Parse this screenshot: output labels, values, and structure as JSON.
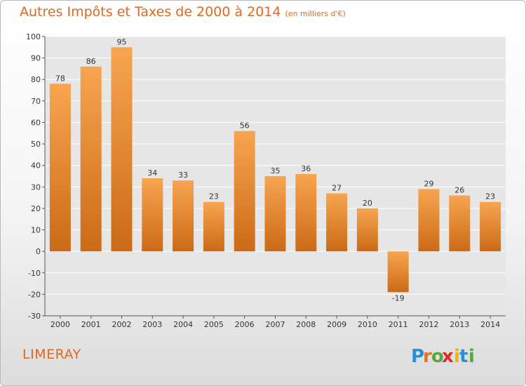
{
  "title": "Autres Impôts et Taxes de 2000 à 2014",
  "subtitle": "(en milliers d'€)",
  "commune": "LIMERAY",
  "brand": {
    "letters": [
      "P",
      "r",
      "o",
      "x",
      "i",
      "t",
      "i"
    ],
    "colors": [
      "#2a8fd6",
      "#e9731c",
      "#55a93a",
      "#e02a2a",
      "#f0b400",
      "#2a8fd6",
      "#55a93a"
    ]
  },
  "colors": {
    "accent": "#e06820",
    "bar_light": "#f7a550",
    "bar_dark": "#cc6a16",
    "plot_bg": "#e6e6e6",
    "grid": "#ffffff"
  },
  "chart_data": {
    "type": "bar",
    "categories": [
      "2000",
      "2001",
      "2002",
      "2003",
      "2004",
      "2005",
      "2006",
      "2007",
      "2008",
      "2009",
      "2010",
      "2011",
      "2012",
      "2013",
      "2014"
    ],
    "values": [
      78,
      86,
      95,
      34,
      33,
      23,
      56,
      35,
      36,
      27,
      20,
      -19,
      29,
      26,
      23
    ],
    "data_labels": [
      "78",
      "86",
      "95",
      "34",
      "33",
      "23",
      "56",
      "35",
      "36",
      "27",
      "20",
      "-19",
      "29",
      "26",
      "23"
    ],
    "ylim": [
      -30,
      100
    ],
    "yticks": [
      -30,
      -20,
      -10,
      0,
      10,
      20,
      30,
      40,
      50,
      60,
      70,
      80,
      90,
      100
    ],
    "ytick_labels": [
      "-30",
      "-20",
      "-10",
      "0",
      "10",
      "20",
      "30",
      "40",
      "50",
      "60",
      "70",
      "80",
      "90",
      "100"
    ],
    "grid": true,
    "xlabel": "",
    "ylabel": ""
  }
}
